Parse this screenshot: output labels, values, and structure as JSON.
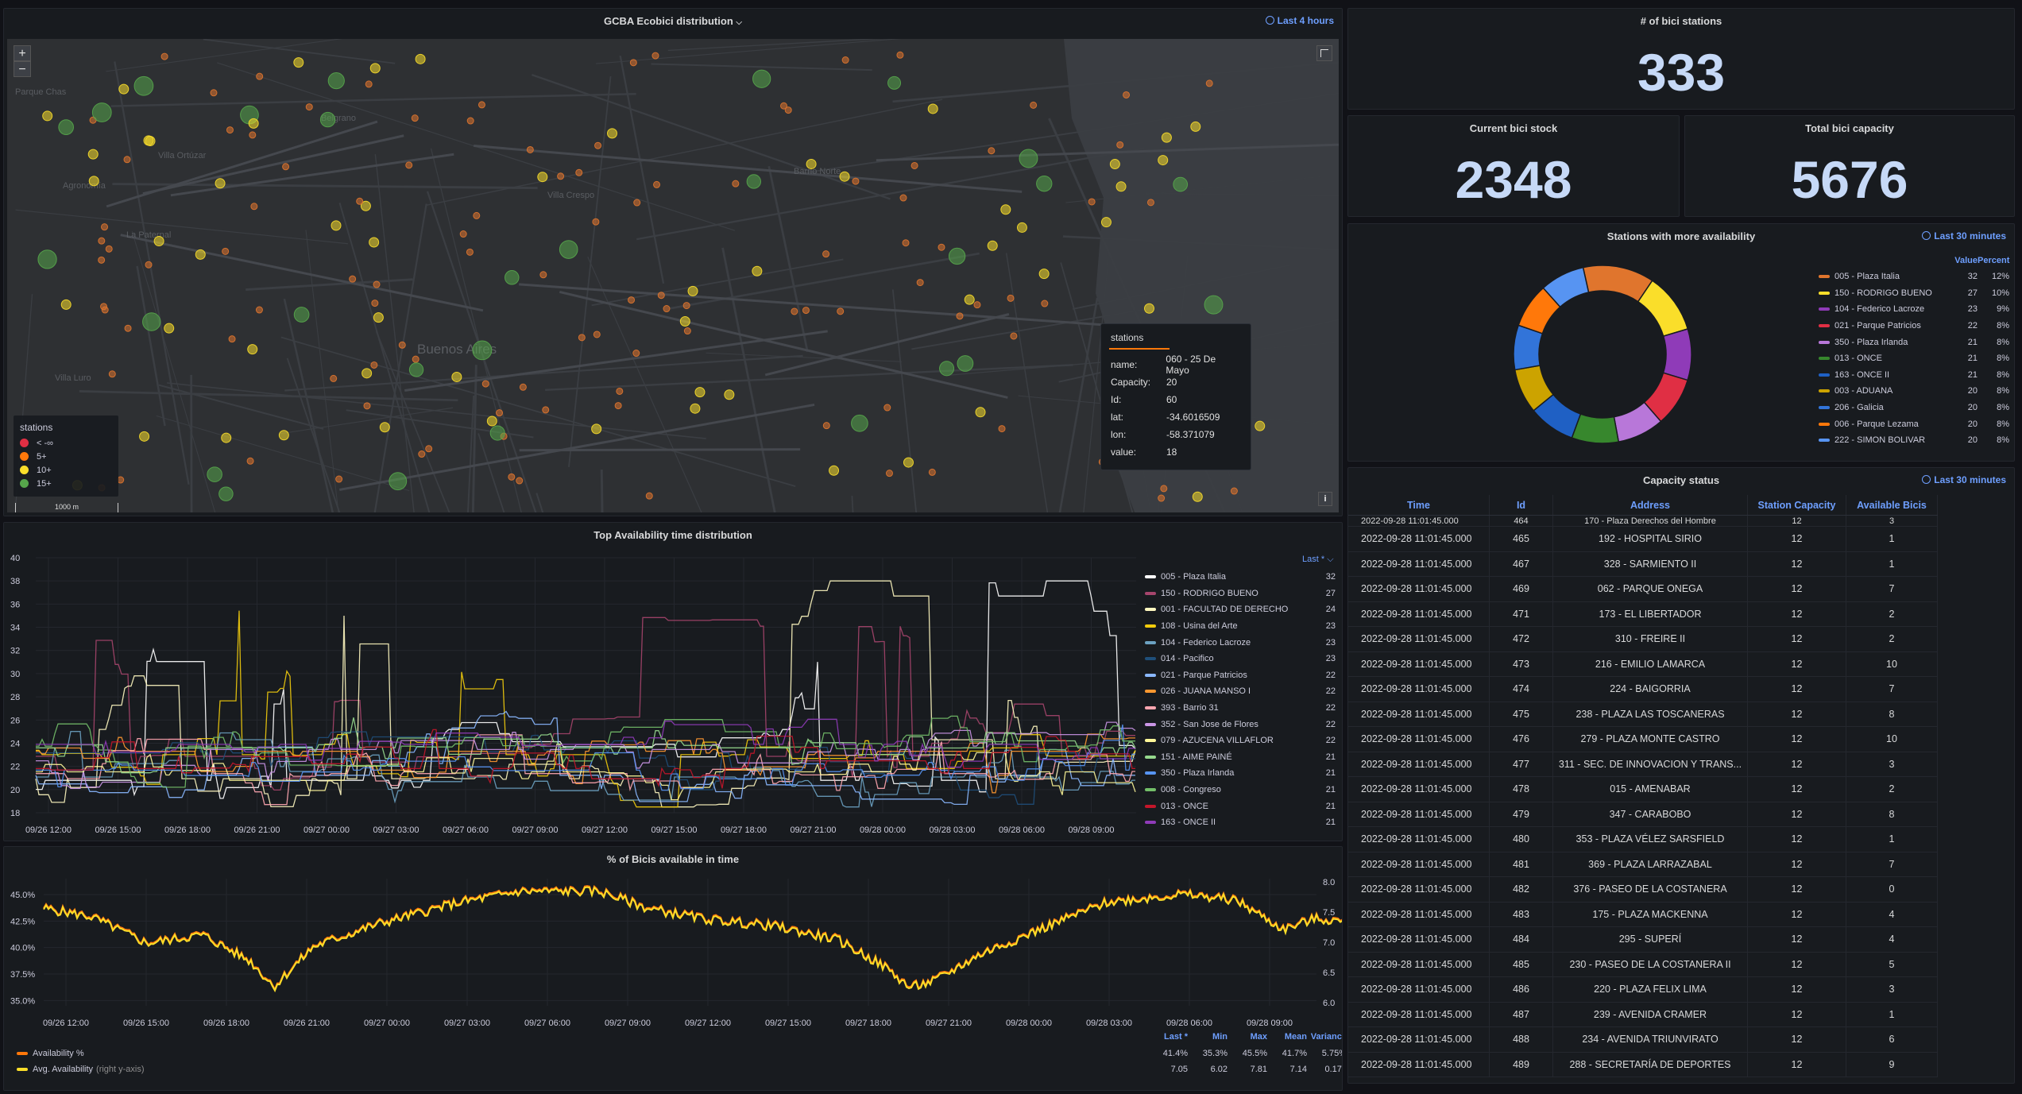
{
  "colors": {
    "accent": "#6e9fff",
    "red": "#e02f44",
    "orange": "#ff780a",
    "yellow": "#fade2a",
    "green": "#56a64b"
  },
  "map_panel": {
    "title": "GCBA Ecobici distribution",
    "time_range": "Last 4 hours",
    "zoom_in": "+",
    "zoom_out": "−",
    "scale": "1000 m",
    "places": [
      "Parque Chas",
      "Belgrano",
      "Villa Ortúzar",
      "Barrio Norte",
      "Agronomía",
      "Villa Crespo",
      "Buenos Aires",
      "Villa Luro",
      "La Paternal"
    ],
    "legend": {
      "title": "stations",
      "items": [
        {
          "label": "< -∞",
          "color": "#e02f44"
        },
        {
          "label": "5+",
          "color": "#ff780a"
        },
        {
          "label": "10+",
          "color": "#fade2a"
        },
        {
          "label": "15+",
          "color": "#56a64b"
        }
      ]
    },
    "tooltip": {
      "title": "stations",
      "rows": [
        {
          "k": "name:",
          "v": "060 - 25 De Mayo"
        },
        {
          "k": "Capacity:",
          "v": "20"
        },
        {
          "k": "Id:",
          "v": "60"
        },
        {
          "k": "lat:",
          "v": "-34.6016509"
        },
        {
          "k": "lon:",
          "v": "-58.371079"
        },
        {
          "k": "value:",
          "v": "18"
        }
      ]
    },
    "info_icon": "info-icon",
    "layers_icon": "layers-icon"
  },
  "stat_stations": {
    "title": "# of bici stations",
    "value": "333"
  },
  "stat_stock": {
    "title": "Current bici stock",
    "value": "2348"
  },
  "stat_capacity": {
    "title": "Total bici capacity",
    "value": "5676"
  },
  "donut_panel": {
    "title": "Stations with more availability",
    "time_range": "Last 30 minutes",
    "col_value": "Value",
    "col_percent": "Percent",
    "items": [
      {
        "name": "005 - Plaza Italia",
        "value": "32",
        "percent": "12%",
        "color": "#e0752d"
      },
      {
        "name": "150 - RODRIGO BUENO",
        "value": "27",
        "percent": "10%",
        "color": "#fade2a"
      },
      {
        "name": "104 - Federico Lacroze",
        "value": "23",
        "percent": "9%",
        "color": "#8f3bb8"
      },
      {
        "name": "021 - Parque Patricios",
        "value": "22",
        "percent": "8%",
        "color": "#e02f44"
      },
      {
        "name": "350 - Plaza Irlanda",
        "value": "21",
        "percent": "8%",
        "color": "#b877d9"
      },
      {
        "name": "013 - ONCE",
        "value": "21",
        "percent": "8%",
        "color": "#37872d"
      },
      {
        "name": "163 - ONCE II",
        "value": "21",
        "percent": "8%",
        "color": "#1f60c4"
      },
      {
        "name": "003 - ADUANA",
        "value": "20",
        "percent": "8%",
        "color": "#cca300"
      },
      {
        "name": "206 - Galicia",
        "value": "20",
        "percent": "8%",
        "color": "#3274d9"
      },
      {
        "name": "006 - Parque Lezama",
        "value": "20",
        "percent": "8%",
        "color": "#ff780a"
      },
      {
        "name": "222 - SIMON BOLIVAR",
        "value": "20",
        "percent": "8%",
        "color": "#5794f2"
      }
    ]
  },
  "top_panel": {
    "title": "Top Availability time distribution",
    "legend_header": "Last *",
    "y_ticks": [
      "40",
      "38",
      "36",
      "34",
      "32",
      "30",
      "28",
      "26",
      "24",
      "22",
      "20",
      "18"
    ],
    "x_ticks": [
      "09/26 12:00",
      "09/26 15:00",
      "09/26 18:00",
      "09/26 21:00",
      "09/27 00:00",
      "09/27 03:00",
      "09/27 06:00",
      "09/27 09:00",
      "09/27 12:00",
      "09/27 15:00",
      "09/27 18:00",
      "09/27 21:00",
      "09/28 00:00",
      "09/28 03:00",
      "09/28 06:00",
      "09/28 09:00"
    ],
    "series": [
      {
        "name": "005 - Plaza Italia",
        "last": "32",
        "color": "#ffffff"
      },
      {
        "name": "150 - RODRIGO BUENO",
        "last": "27",
        "color": "#a6456c"
      },
      {
        "name": "001 - FACULTAD DE DERECHO",
        "last": "24",
        "color": "#fff8c0"
      },
      {
        "name": "108 - Usina del Arte",
        "last": "23",
        "color": "#f2cc0c"
      },
      {
        "name": "104 - Federico Lacroze",
        "last": "23",
        "color": "#6ca2c2"
      },
      {
        "name": "014 - Pacifico",
        "last": "23",
        "color": "#1f4f7a"
      },
      {
        "name": "021 - Parque Patricios",
        "last": "22",
        "color": "#8ab8ff"
      },
      {
        "name": "026 - JUANA MANSO I",
        "last": "22",
        "color": "#ff9830"
      },
      {
        "name": "393 - Barrio 31",
        "last": "22",
        "color": "#ffa6b0"
      },
      {
        "name": "352 - San Jose de Flores",
        "last": "22",
        "color": "#ca95e5"
      },
      {
        "name": "079 - AZUCENA VILLAFLOR",
        "last": "22",
        "color": "#fff899"
      },
      {
        "name": "151 - AIME PAINÉ",
        "last": "21",
        "color": "#96d98d"
      },
      {
        "name": "350 - Plaza Irlanda",
        "last": "21",
        "color": "#5794f2"
      },
      {
        "name": "008 - Congreso",
        "last": "21",
        "color": "#73bf69"
      },
      {
        "name": "013 - ONCE",
        "last": "21",
        "color": "#c4162a"
      },
      {
        "name": "163 - ONCE II",
        "last": "21",
        "color": "#8f3bb8"
      }
    ]
  },
  "pct_panel": {
    "title": "% of Bicis available in time",
    "y_ticks": [
      "45.0%",
      "42.5%",
      "40.0%",
      "37.5%",
      "35.0%"
    ],
    "y2_ticks": [
      "8.0",
      "7.5",
      "7.0",
      "6.5",
      "6.0"
    ],
    "x_ticks": [
      "09/26 12:00",
      "09/26 15:00",
      "09/26 18:00",
      "09/26 21:00",
      "09/27 00:00",
      "09/27 03:00",
      "09/27 06:00",
      "09/27 09:00",
      "09/27 12:00",
      "09/27 15:00",
      "09/27 18:00",
      "09/27 21:00",
      "09/28 00:00",
      "09/28 03:00",
      "09/28 06:00",
      "09/28 09:00"
    ],
    "stat_headers": [
      "Last *",
      "Min",
      "Max",
      "Mean",
      "Variance"
    ],
    "series": [
      {
        "name": "Availability %",
        "suffix": "",
        "color": "#ff780a",
        "stats": [
          "41.4%",
          "35.3%",
          "45.5%",
          "41.7%",
          "5.75%"
        ]
      },
      {
        "name": "Avg. Availability",
        "suffix": "(right y-axis)",
        "color": "#fade2a",
        "stats": [
          "7.05",
          "6.02",
          "7.81",
          "7.14",
          "0.172"
        ]
      }
    ]
  },
  "capacity_panel": {
    "title": "Capacity status",
    "time_range": "Last 30 minutes",
    "columns": [
      "Time",
      "Id",
      "Address",
      "Station Capacity",
      "Available Bicis"
    ],
    "partial_row": [
      "2022-09-28 11:01:45.000",
      "464",
      "170 - Plaza Derechos del Hombre",
      "12",
      "3"
    ],
    "rows": [
      [
        "2022-09-28 11:01:45.000",
        "465",
        "192 - HOSPITAL SIRIO",
        "12",
        "1"
      ],
      [
        "2022-09-28 11:01:45.000",
        "467",
        "328 - SARMIENTO II",
        "12",
        "1"
      ],
      [
        "2022-09-28 11:01:45.000",
        "469",
        "062 - PARQUE ONEGA",
        "12",
        "7"
      ],
      [
        "2022-09-28 11:01:45.000",
        "471",
        "173 - EL LIBERTADOR",
        "12",
        "2"
      ],
      [
        "2022-09-28 11:01:45.000",
        "472",
        "310 - FREIRE II",
        "12",
        "2"
      ],
      [
        "2022-09-28 11:01:45.000",
        "473",
        "216 - EMILIO LAMARCA",
        "12",
        "10"
      ],
      [
        "2022-09-28 11:01:45.000",
        "474",
        "224 - BAIGORRIA",
        "12",
        "7"
      ],
      [
        "2022-09-28 11:01:45.000",
        "475",
        "238 - PLAZA LAS TOSCANERAS",
        "12",
        "8"
      ],
      [
        "2022-09-28 11:01:45.000",
        "476",
        "279 - PLAZA MONTE CASTRO",
        "12",
        "10"
      ],
      [
        "2022-09-28 11:01:45.000",
        "477",
        "311 - SEC. DE INNOVACION Y TRANS...",
        "12",
        "3"
      ],
      [
        "2022-09-28 11:01:45.000",
        "478",
        "015 - AMENABAR",
        "12",
        "2"
      ],
      [
        "2022-09-28 11:01:45.000",
        "479",
        "347 - CARABOBO",
        "12",
        "8"
      ],
      [
        "2022-09-28 11:01:45.000",
        "480",
        "353 - PLAZA VÉLEZ SARSFIELD",
        "12",
        "1"
      ],
      [
        "2022-09-28 11:01:45.000",
        "481",
        "369 - PLAZA LARRAZABAL",
        "12",
        "7"
      ],
      [
        "2022-09-28 11:01:45.000",
        "482",
        "376 - PASEO DE LA COSTANERA",
        "12",
        "0"
      ],
      [
        "2022-09-28 11:01:45.000",
        "483",
        "175 - PLAZA MACKENNA",
        "12",
        "4"
      ],
      [
        "2022-09-28 11:01:45.000",
        "484",
        "295 - SUPERÍ",
        "12",
        "4"
      ],
      [
        "2022-09-28 11:01:45.000",
        "485",
        "230 - PASEO DE LA COSTANERA II",
        "12",
        "5"
      ],
      [
        "2022-09-28 11:01:45.000",
        "486",
        "220 - PLAZA FELIX LIMA",
        "12",
        "3"
      ],
      [
        "2022-09-28 11:01:45.000",
        "487",
        "239 - AVENIDA CRAMER",
        "12",
        "1"
      ],
      [
        "2022-09-28 11:01:45.000",
        "488",
        "234 - AVENIDA TRIUNVIRATO",
        "12",
        "6"
      ],
      [
        "2022-09-28 11:01:45.000",
        "489",
        "288 - SECRETARÍA DE DEPORTES",
        "12",
        "9"
      ]
    ]
  }
}
